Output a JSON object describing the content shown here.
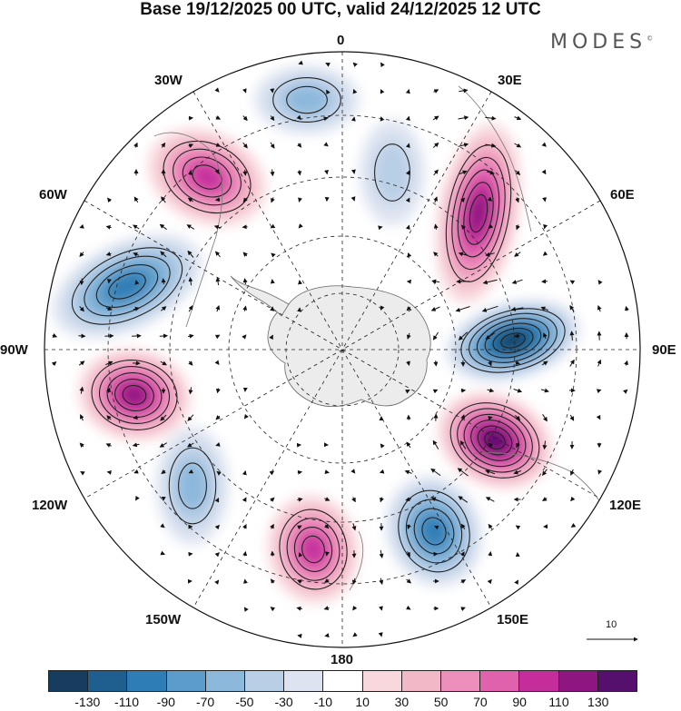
{
  "title": "Base 19/12/2025 00 UTC, valid 24/12/2025 12 UTC",
  "brand": "MODES",
  "brand_mark": "©",
  "longitude_labels": {
    "n": "0",
    "e30": "30E",
    "e60": "60E",
    "e90": "90E",
    "e120": "120E",
    "e150": "150E",
    "s": "180",
    "w150": "150W",
    "w120": "120W",
    "w90": "90W",
    "w60": "60W",
    "w30": "30W"
  },
  "reference_vector": {
    "value": "10"
  },
  "colorbar": {
    "tick_labels": [
      "-130",
      "-110",
      "-90",
      "-70",
      "-50",
      "-30",
      "-10",
      "10",
      "30",
      "50",
      "70",
      "90",
      "110",
      "130"
    ],
    "colors": [
      "#173d5e",
      "#1f5f8f",
      "#2f7db5",
      "#5b9cca",
      "#8cb8dc",
      "#b9cfe6",
      "#dde3f0",
      "#ffffff",
      "#f8d8dc",
      "#f3b8c8",
      "#ec8fbb",
      "#e062ad",
      "#c52d9c",
      "#8e1680",
      "#55106e"
    ]
  },
  "anomaly_centers": [
    {
      "label": "pos-30W",
      "value": 90
    },
    {
      "label": "neg-0",
      "value": -50
    },
    {
      "label": "neg-15E",
      "value": -30
    },
    {
      "label": "pos-40E",
      "value": 110
    },
    {
      "label": "neg-60W",
      "value": -90
    },
    {
      "label": "neg-85E",
      "value": -130
    },
    {
      "label": "pos-95W",
      "value": 110
    },
    {
      "label": "pos-115E",
      "value": 130
    },
    {
      "label": "neg-125W",
      "value": -50
    },
    {
      "label": "neg-150E",
      "value": -90
    },
    {
      "label": "pos-165W",
      "value": 90
    }
  ]
}
